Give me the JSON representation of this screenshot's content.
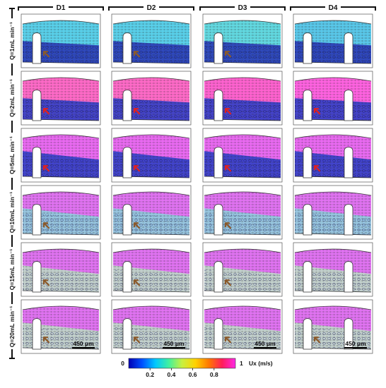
{
  "columns": [
    "D1",
    "D2",
    "D3",
    "D4"
  ],
  "rows": [
    {
      "label": "Q=1mL min⁻¹",
      "flow": 1
    },
    {
      "label": "Q=2mL min⁻¹",
      "flow": 2
    },
    {
      "label": "Q=5mL min⁻¹",
      "flow": 5
    },
    {
      "label": "Q=10mL min⁻¹",
      "flow": 10
    },
    {
      "label": "Q=15mL min⁻¹",
      "flow": 15
    },
    {
      "label": "Q=20mL min⁻¹",
      "flow": 20
    }
  ],
  "scale_bar": {
    "label": "450 μm"
  },
  "colorbar": {
    "min_label": "0",
    "max_label": "1",
    "unit_label": "Ux (m/s)",
    "range": [
      0,
      1
    ],
    "ticks": [
      "0.2",
      "0.4",
      "0.6",
      "0.8"
    ],
    "tick_values": [
      0.2,
      0.4,
      0.6,
      0.8
    ],
    "colors": [
      "#0000b4",
      "#0050ff",
      "#00c8ff",
      "#40f0a0",
      "#c8f040",
      "#ffd200",
      "#ff7800",
      "#ff1e5a",
      "#ff28e6"
    ]
  },
  "cell_colors": [
    [
      "#3cc8e6",
      "#3cc8e6",
      "#46d2dc",
      "#3cbee6"
    ],
    [
      "#ff50be",
      "#ff50be",
      "#ff46c8",
      "#ff46dc"
    ],
    [
      "#e650f0",
      "#e650f0",
      "#e650f0",
      "#e650f0"
    ],
    [
      "#dc5af0",
      "#dc5af0",
      "#dc5af0",
      "#dc5af0"
    ],
    [
      "#dc5af0",
      "#dc5af0",
      "#dc5af0",
      "#dc5af0"
    ],
    [
      "#dc5af0",
      "#dc5af0",
      "#dc5af0",
      "#dc5af0"
    ]
  ],
  "arrow_colors": {
    "red": "#e02020",
    "brown": "#8b5a2b"
  }
}
